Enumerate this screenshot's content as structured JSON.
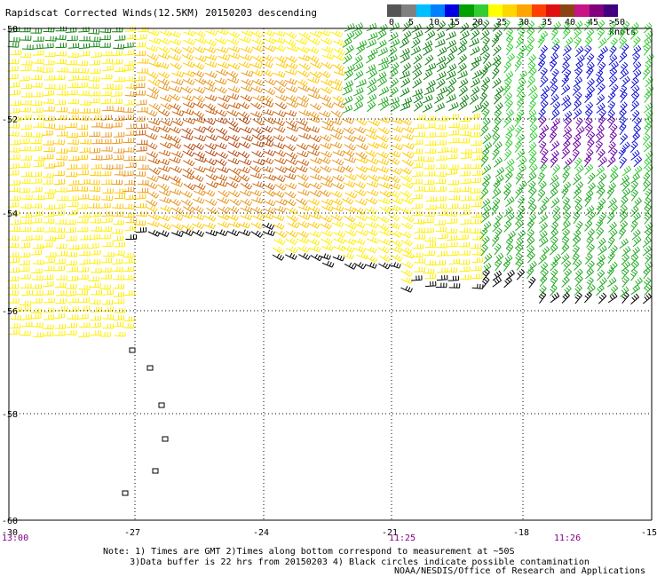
{
  "title": "Rapidscat Corrected Winds(12.5KM) 20150203 descending",
  "legend": {
    "labels": [
      "0",
      "5",
      "10",
      "15",
      "20",
      "25",
      "30",
      "35",
      "40",
      "45",
      ">50 knots"
    ],
    "colors": [
      "#555555",
      "#808080",
      "#00bfff",
      "#0080ff",
      "#0000e0",
      "#00a000",
      "#33cc33",
      "#ffff00",
      "#ffd700",
      "#ffa500",
      "#ff4000",
      "#e01010",
      "#8b4513",
      "#c71585",
      "#800080",
      "#400080"
    ]
  },
  "map": {
    "latitudes": [
      "-50",
      "-52",
      "-54",
      "-56",
      "-58",
      "-60"
    ],
    "longitudes": [
      "-30",
      "-27",
      "-24",
      "-21",
      "-18",
      "-15"
    ],
    "times": [
      "13:00",
      "11:25",
      "11:26"
    ]
  },
  "note_line1": "Note: 1) Times are GMT 2)Times along bottom correspond to measurement at ~50S",
  "note_line2": "     3)Data buffer is 22 hrs from 20150203 4) Black circles indicate possible contamination",
  "credit": "NOAA/NESDIS/Office of Research and Applications"
}
